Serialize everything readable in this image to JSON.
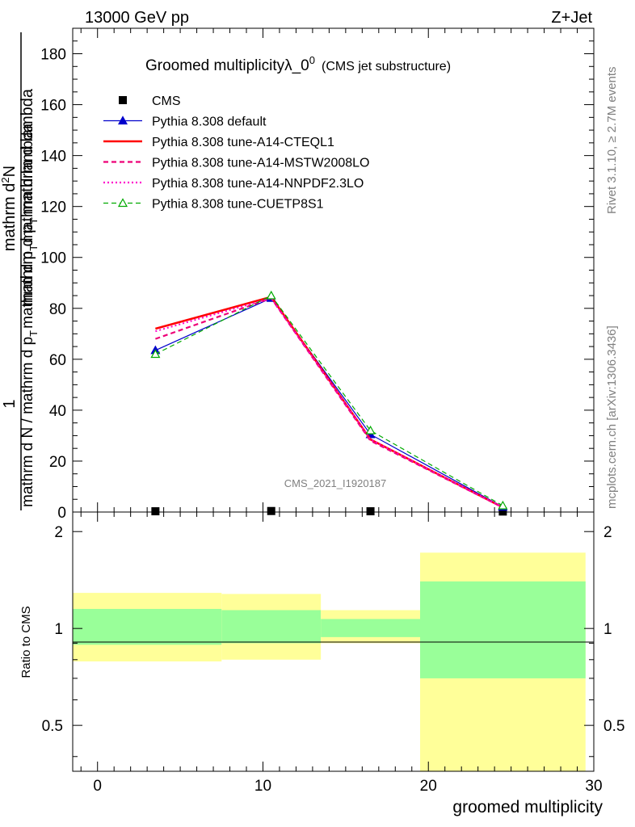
{
  "header": {
    "energy": "13000 GeV pp",
    "process": "Z+Jet"
  },
  "side": {
    "rivet": "Rivet 3.1.10, ≥ 2.7M events",
    "mcplots": "mcplots.cern.ch [arXiv:1306.3436]"
  },
  "chart_data": [
    {
      "type": "line",
      "title": "Groomed multiplicityλ_0",
      "title_sup": "0",
      "subtitle": "(CMS jet substructure)",
      "analysis_label": "CMS_2021_I1920187",
      "ylabel_numerator": "1",
      "ylabel_denominator": "mathrm d N / mathrm d p",
      "ylabel_denominator_sub": "T",
      "ylabel_denominator_rest": "mathrm d p",
      "ylabel_numerator_label": "mathrm d",
      "ylabel_numerator_sup": "2",
      "ylabel_numerator_N": "N",
      "ylabel_top": "mathrm d",
      "ylabel_top_mid": "N",
      "ylabel_lower_a": "mathrm d N / mathrm d p",
      "ylabel_lower_a_sub": "T",
      "ylabel_lower_b": "mathrm d p",
      "ylabel_lower_b_sub": "T",
      "ylabel_lower_c": "mathrm d lambda",
      "ylabel_upper_a": "mathrm d",
      "ylabel_upper_sup": "2",
      "ylabel_upper_b": "N",
      "ylabel_mid_a": "mathrm d p",
      "ylabel_mid_sub": "T",
      "ylabel_mid_b": "mathrm d lambda",
      "ylim": [
        0,
        190
      ],
      "yticks": [
        0,
        20,
        40,
        60,
        80,
        100,
        120,
        140,
        160,
        180
      ],
      "xlim": [
        -1.5,
        30
      ],
      "legend_position": "top-left",
      "series": [
        {
          "name": "CMS",
          "color": "#000000",
          "style": "marker-square",
          "x": [
            3.5,
            10.5,
            16.5,
            24.5
          ],
          "y": [
            0.3,
            0.4,
            0.3,
            0.2
          ]
        },
        {
          "name": "Pythia 8.308 default",
          "color": "#0000cc",
          "style": "solid-triangle",
          "x": [
            3.5,
            10.5,
            16.5,
            24.5
          ],
          "y": [
            63.5,
            84.0,
            30.5,
            2.0
          ]
        },
        {
          "name": "Pythia 8.308 tune-A14-CTEQL1",
          "color": "#ff0000",
          "style": "solid-thick",
          "x": [
            3.5,
            10.5,
            16.5,
            24.5
          ],
          "y": [
            72.0,
            84.5,
            28.5,
            1.8
          ]
        },
        {
          "name": "Pythia 8.308 tune-A14-MSTW2008LO",
          "color": "#ee0077",
          "style": "dashed",
          "x": [
            3.5,
            10.5,
            16.5,
            24.5
          ],
          "y": [
            68.0,
            84.0,
            28.0,
            1.8
          ]
        },
        {
          "name": "Pythia 8.308 tune-A14-NNPDF2.3LO",
          "color": "#ff00cc",
          "style": "dotted",
          "x": [
            3.5,
            10.5,
            16.5,
            24.5
          ],
          "y": [
            71.0,
            84.0,
            28.5,
            1.8
          ]
        },
        {
          "name": "Pythia 8.308 tune-CUETP8S1",
          "color": "#00aa00",
          "style": "dashed-open-triangle",
          "x": [
            3.5,
            10.5,
            16.5,
            24.5
          ],
          "y": [
            62.0,
            85.0,
            32.0,
            2.5
          ]
        }
      ]
    },
    {
      "type": "area",
      "ylabel": "Ratio to CMS",
      "xlabel": "groomed multiplicity",
      "log_y": true,
      "ylim": [
        0.36,
        2.3
      ],
      "yticks": [
        0.5,
        1,
        2
      ],
      "xlim": [
        -1.5,
        30
      ],
      "xticks": [
        0,
        10,
        20,
        30
      ],
      "bins": [
        {
          "x0": -1.5,
          "x1": 7.5,
          "inner": [
            0.89,
            1.15
          ],
          "outer": [
            0.79,
            1.29
          ]
        },
        {
          "x0": 7.5,
          "x1": 13.5,
          "inner": [
            0.9,
            1.14
          ],
          "outer": [
            0.8,
            1.28
          ]
        },
        {
          "x0": 13.5,
          "x1": 19.5,
          "inner": [
            0.94,
            1.07
          ],
          "outer": [
            0.9,
            1.14
          ]
        },
        {
          "x0": 19.5,
          "x1": 29.5,
          "inner": [
            0.7,
            1.4
          ],
          "outer": [
            0.36,
            1.72
          ]
        }
      ],
      "colors": {
        "inner": "#99ff99",
        "outer": "#ffff99"
      }
    }
  ]
}
